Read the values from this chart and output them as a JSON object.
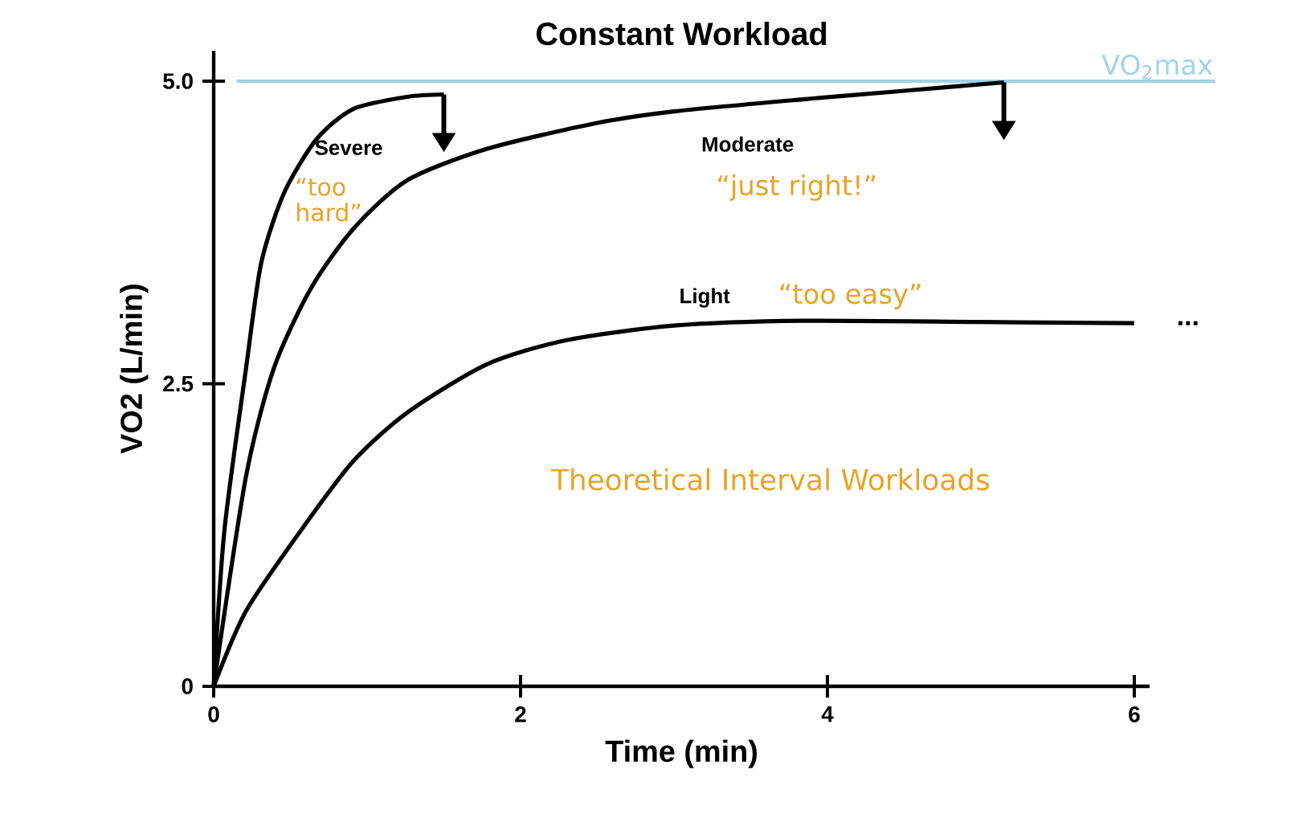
{
  "chart_data": {
    "type": "line",
    "title": "Constant Workload",
    "xlabel": "Time (min)",
    "ylabel": "VO2 (L/min)",
    "xlim": [
      0,
      6.1
    ],
    "ylim": [
      0,
      5.25
    ],
    "xticks": [
      0,
      2,
      4,
      6
    ],
    "yticks": [
      0,
      2.5,
      {
        "value": 5,
        "label": "5.0"
      }
    ],
    "legend": false,
    "grid": false,
    "series": [
      {
        "name": "Severe",
        "color": "#000000",
        "x": [
          0,
          0.07,
          0.21,
          0.31,
          0.46,
          0.67,
          0.91,
          1.26,
          1.5
        ],
        "values": [
          0,
          1.29,
          2.62,
          3.5,
          4.08,
          4.52,
          4.77,
          4.87,
          4.89
        ]
      },
      {
        "name": "Moderate",
        "color": "#000000",
        "x": [
          0,
          0.21,
          0.39,
          0.63,
          0.91,
          1.26,
          1.78,
          2.48,
          3.0,
          3.84,
          4.5,
          5.15
        ],
        "values": [
          0,
          1.73,
          2.62,
          3.28,
          3.78,
          4.18,
          4.44,
          4.65,
          4.75,
          4.85,
          4.92,
          4.99
        ]
      },
      {
        "name": "Light",
        "color": "#000000",
        "x": [
          0,
          0.21,
          0.57,
          0.91,
          1.26,
          1.78,
          2.3,
          3.0,
          3.84,
          5.0,
          6.0
        ],
        "values": [
          0,
          0.62,
          1.29,
          1.86,
          2.26,
          2.66,
          2.86,
          2.98,
          3.02,
          3.01,
          3.0
        ]
      }
    ],
    "ref_lines": [
      {
        "axis": "y",
        "value": 5,
        "label": "VO$_{2}$max",
        "color": "#9fd3e6"
      }
    ],
    "annotations": [
      "“too hard”",
      "“just right!”",
      "“too easy”",
      "Theoretical Interval Workloads",
      "..."
    ]
  }
}
